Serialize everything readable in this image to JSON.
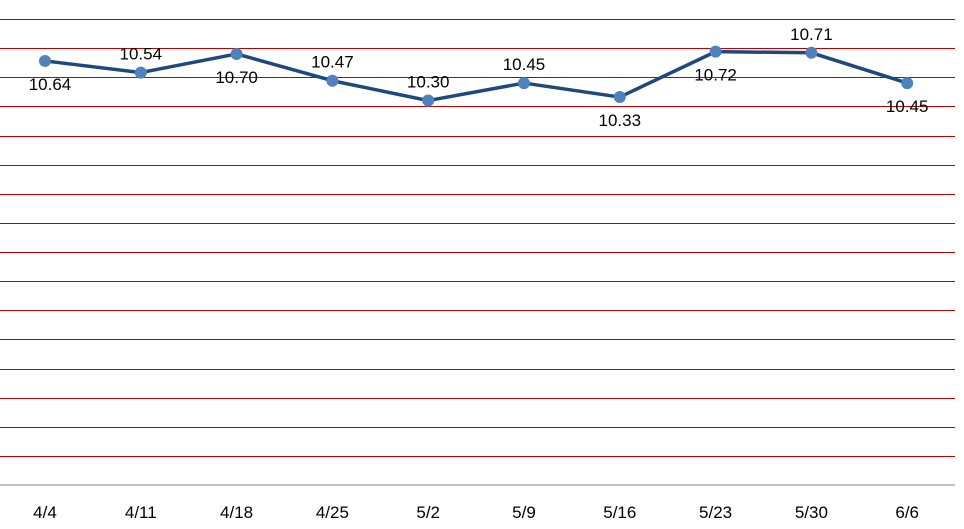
{
  "chart_data": {
    "type": "line",
    "categories": [
      "4/4",
      "4/11",
      "4/18",
      "4/25",
      "5/2",
      "5/9",
      "5/16",
      "5/23",
      "5/30",
      "6/6"
    ],
    "series": [
      {
        "values": [
          10.64,
          10.54,
          10.7,
          10.47,
          10.3,
          10.45,
          10.33,
          10.72,
          10.71,
          10.45
        ],
        "labels": [
          "10.64",
          "10.54",
          "10.70",
          "10.47",
          "10.30",
          "10.45",
          "10.33",
          "10.72",
          "10.71",
          "10.45"
        ],
        "color": "#1F497D",
        "marker_color": "#4F81BD"
      }
    ],
    "label_positions": [
      "below",
      "above",
      "below",
      "above",
      "above",
      "above",
      "below",
      "below",
      "above",
      "below"
    ],
    "ylim": [
      7.0,
      11.0
    ],
    "grid": true,
    "grid_color": "#C00000",
    "axis_color": "#808080"
  }
}
